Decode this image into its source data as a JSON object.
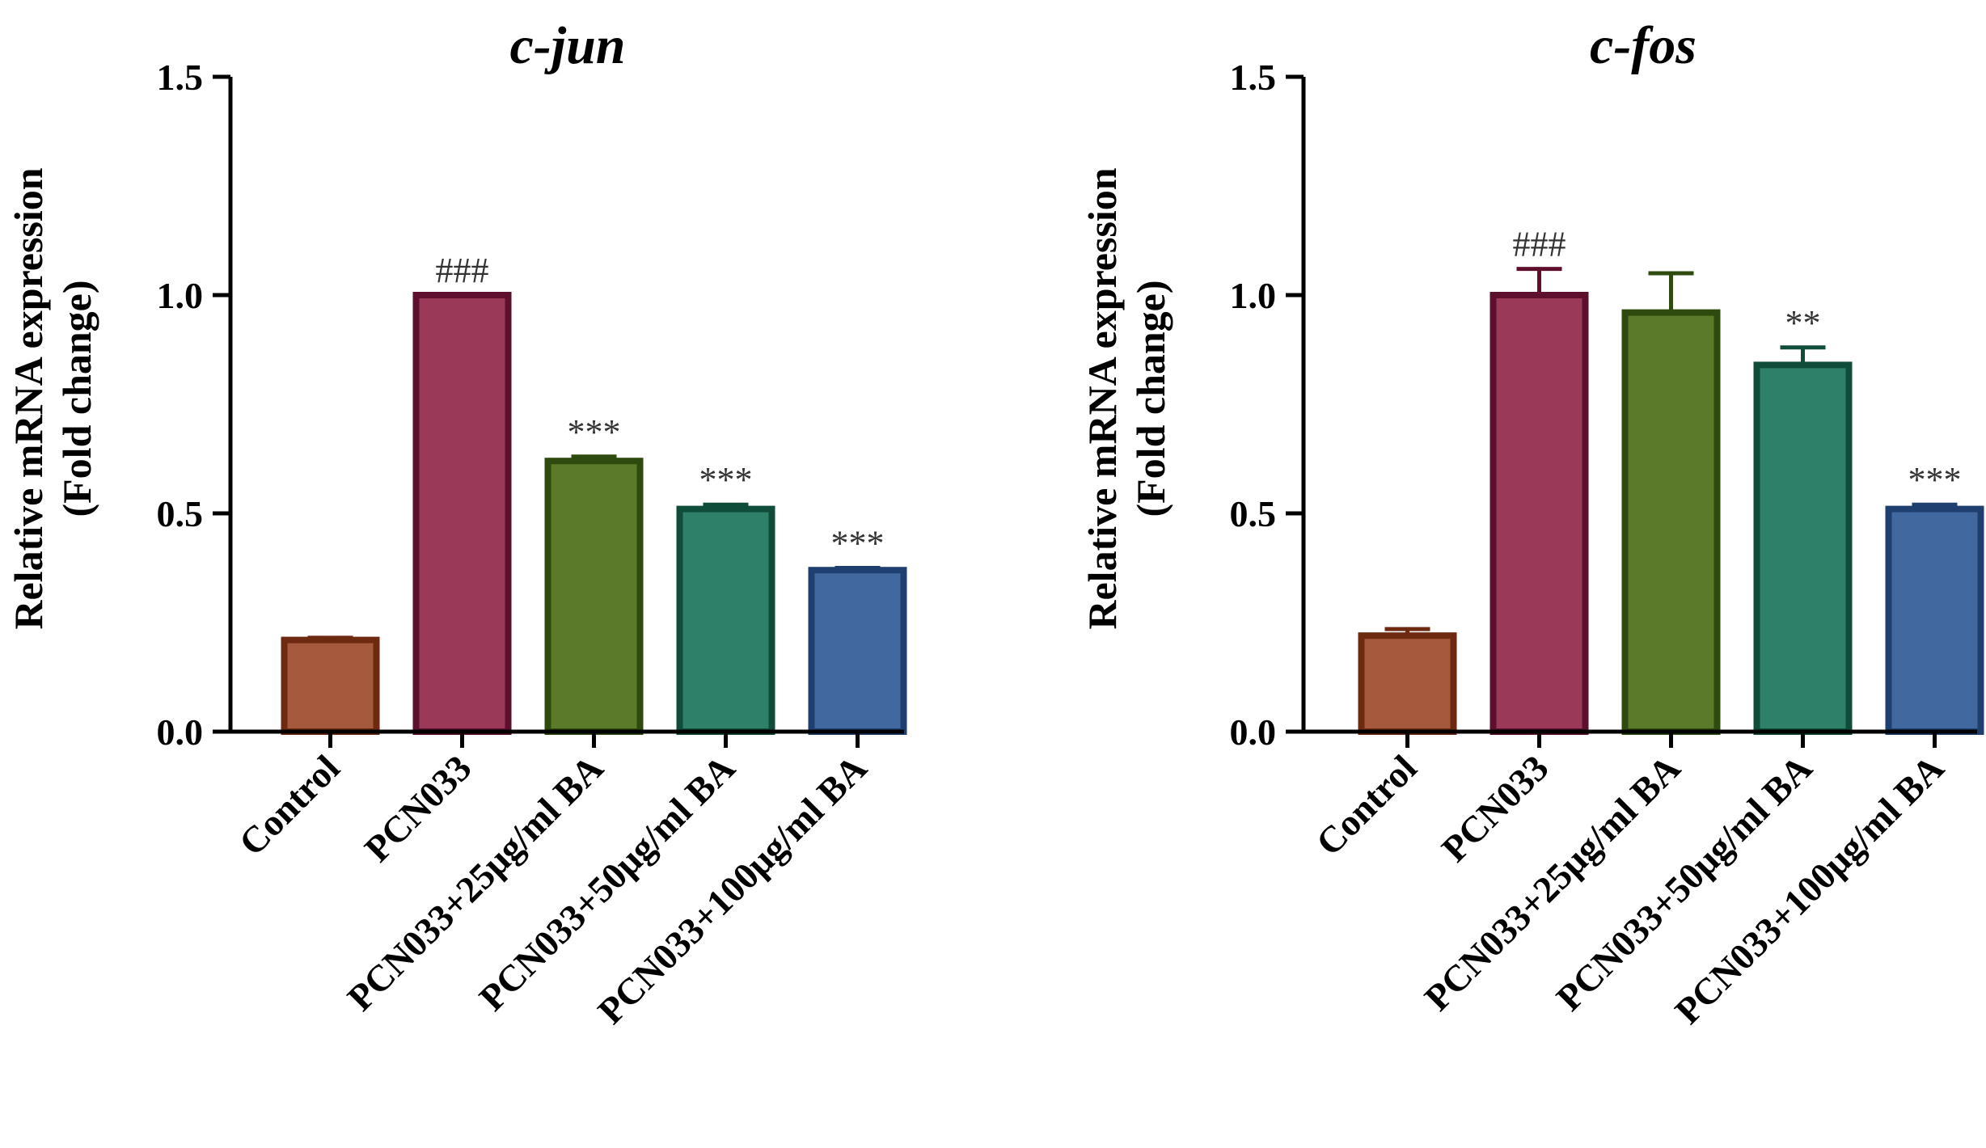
{
  "chart_data": [
    {
      "type": "bar",
      "title": "c-jun",
      "xlabel": "",
      "ylabel": [
        "Relative mRNA expression",
        "(Fold change)"
      ],
      "ylim": [
        0,
        1.5
      ],
      "yticks": [
        "0.0",
        "0.5",
        "1.0",
        "1.5"
      ],
      "categories": [
        "Control",
        "PCN033",
        "PCN033+25μg/ml BA",
        "PCN033+50μg/ml BA",
        "PCN033+100μg/ml BA"
      ],
      "values": [
        0.21,
        1.0,
        0.62,
        0.51,
        0.37
      ],
      "errors": [
        0.005,
        0.0,
        0.01,
        0.01,
        0.005
      ],
      "significance": [
        "",
        "###",
        "***",
        "***",
        "***"
      ]
    },
    {
      "type": "bar",
      "title": "c-fos",
      "xlabel": "",
      "ylabel": [
        "Relative mRNA expression",
        "(Fold change)"
      ],
      "ylim": [
        0,
        1.5
      ],
      "yticks": [
        "0.0",
        "0.5",
        "1.0",
        "1.5"
      ],
      "categories": [
        "Control",
        "PCN033",
        "PCN033+25μg/ml BA",
        "PCN033+50μg/ml BA",
        "PCN033+100μg/ml BA"
      ],
      "values": [
        0.22,
        1.0,
        0.96,
        0.84,
        0.51
      ],
      "errors": [
        0.015,
        0.06,
        0.09,
        0.04,
        0.01
      ],
      "significance": [
        "",
        "###",
        "",
        "**",
        "***"
      ]
    }
  ],
  "colors": {
    "fills": [
      "#a65a3d",
      "#9b3a58",
      "#5b7a2a",
      "#2e8068",
      "#4268a0"
    ],
    "strokes": [
      "#6e2a10",
      "#5e0f2e",
      "#2e4a0e",
      "#0f4d3a",
      "#1f3f70"
    ]
  }
}
